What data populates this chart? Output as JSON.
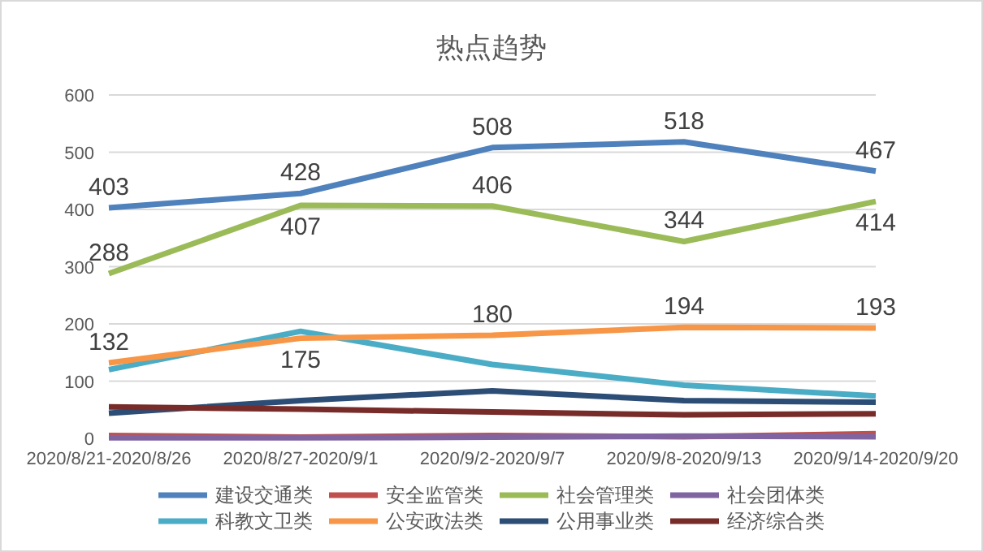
{
  "chart_data": {
    "type": "line",
    "title": "热点趋势",
    "categories": [
      "2020/8/21-2020/8/26",
      "2020/8/27-2020/9/1",
      "2020/9/2-2020/9/7",
      "2020/9/8-2020/9/13",
      "2020/9/14-2020/9/20"
    ],
    "series": [
      {
        "name": "建设交通类",
        "color": "#4f81bd",
        "values": [
          403,
          428,
          508,
          518,
          467
        ],
        "value_labels": [
          "403",
          "428",
          "508",
          "518",
          "467"
        ]
      },
      {
        "name": "安全监管类",
        "color": "#c0504d",
        "values": [
          5,
          2,
          5,
          3,
          8
        ]
      },
      {
        "name": "社会管理类",
        "color": "#9bbb59",
        "values": [
          288,
          407,
          406,
          344,
          414
        ],
        "value_labels": [
          "288",
          "407",
          "406",
          "344",
          "414"
        ]
      },
      {
        "name": "社会团体类",
        "color": "#8064a2",
        "values": [
          1,
          1,
          2,
          4,
          3
        ]
      },
      {
        "name": "科教文卫类",
        "color": "#4bacc6",
        "values": [
          120,
          187,
          129,
          93,
          74
        ]
      },
      {
        "name": "公安政法类",
        "color": "#f79646",
        "values": [
          132,
          175,
          180,
          194,
          193
        ],
        "value_labels": [
          "132",
          "175",
          "180",
          "194",
          "193"
        ]
      },
      {
        "name": "公用事业类",
        "color": "#2c4d75",
        "values": [
          44,
          66,
          83,
          66,
          63
        ]
      },
      {
        "name": "经济综合类",
        "color": "#772c2a",
        "values": [
          55,
          51,
          46,
          41,
          43
        ]
      }
    ],
    "ylim": [
      0,
      600
    ],
    "yticks": [
      0,
      100,
      200,
      300,
      400,
      500,
      600
    ],
    "grid": "y",
    "legend": "bottom"
  }
}
